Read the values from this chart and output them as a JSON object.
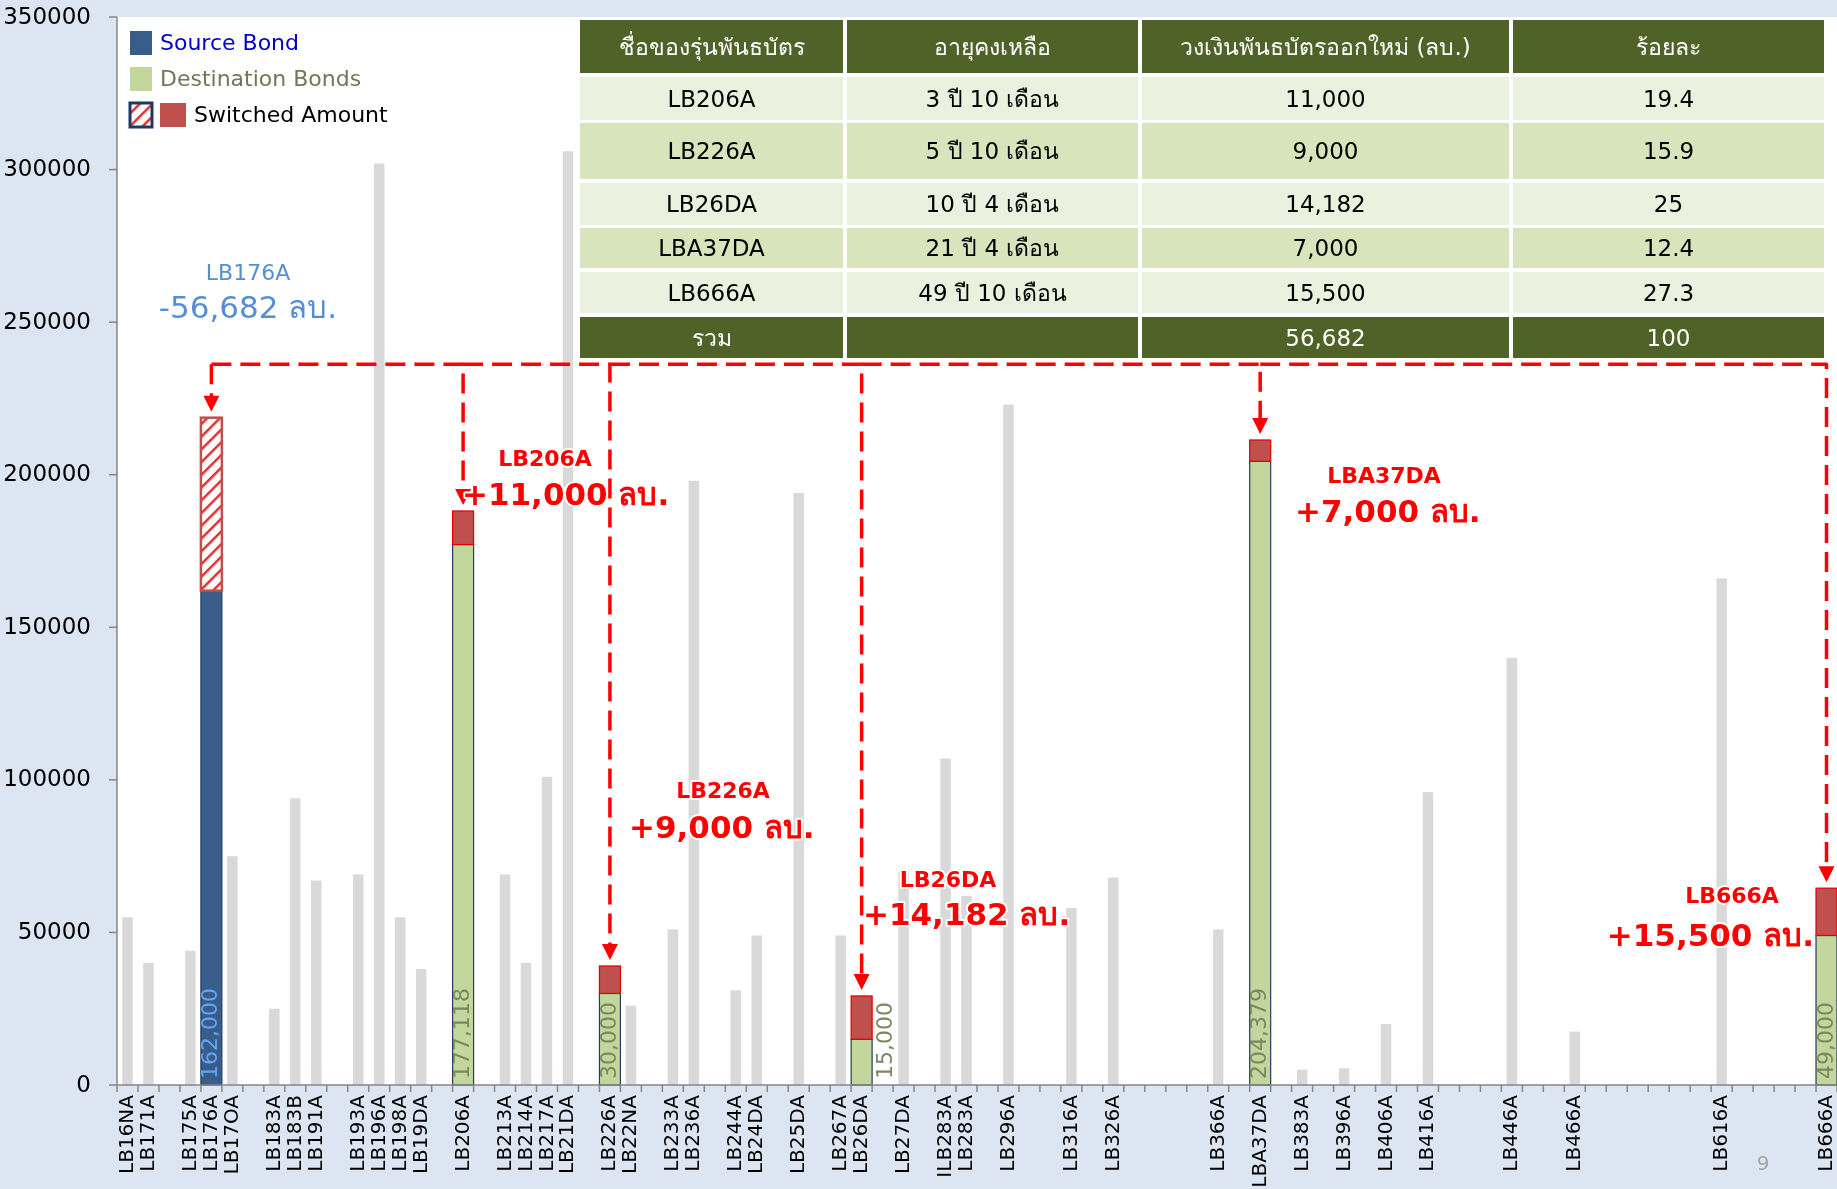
{
  "chart_data": [
    {
      "type": "bar",
      "stacked": true,
      "categories": [
        "LB16NA",
        "LB171A",
        null,
        "LB175A",
        "LB176A",
        "LB17OA",
        null,
        "LB183A",
        "LB183B",
        "LB191A",
        null,
        "LB193A",
        "LB196A",
        "LB198A",
        "LB19DA",
        null,
        "LB206A",
        null,
        "LB213A",
        "LB214A",
        "LB217A",
        "LB21DA",
        null,
        "LB226A",
        "LB22NA",
        null,
        "LB233A",
        "LB236A",
        null,
        "LB244A",
        "LB24DA",
        null,
        "LB25DA",
        null,
        "LB267A",
        "LB26DA",
        null,
        "LB27DA",
        null,
        "ILB283A",
        "LB283A",
        null,
        "LB296A",
        null,
        null,
        "LB316A",
        null,
        "LB326A",
        null,
        null,
        null,
        null,
        "LB366A",
        null,
        "LBA37DA",
        null,
        "LB383A",
        null,
        "LB396A",
        null,
        "LB406A",
        null,
        "LB416A",
        null,
        null,
        null,
        "LB446A",
        null,
        null,
        "LB466A",
        null,
        null,
        null,
        null,
        null,
        null,
        "LB616A",
        null,
        null,
        null,
        null,
        "LB666A"
      ],
      "series": [
        {
          "color": "#d9d9d9",
          "values": [
            55000,
            40000,
            null,
            44000,
            null,
            75000,
            null,
            25000,
            94000,
            67000,
            null,
            69000,
            302000,
            55000,
            38000,
            null,
            null,
            null,
            69000,
            40000,
            101000,
            306000,
            null,
            null,
            26000,
            null,
            51000,
            198000,
            null,
            31000,
            49000,
            null,
            194000,
            null,
            49000,
            null,
            null,
            70000,
            null,
            107000,
            62000,
            null,
            223000,
            null,
            null,
            58000,
            null,
            68000,
            null,
            null,
            null,
            null,
            51000,
            null,
            null,
            null,
            5000,
            null,
            5500,
            null,
            20000,
            null,
            96000,
            null,
            null,
            null,
            140000,
            null,
            null,
            17500,
            null,
            null,
            null,
            null,
            null,
            null,
            166000,
            null,
            null,
            null,
            null,
            null
          ]
        },
        {
          "name": "Source Bond",
          "color": "#385d8a",
          "values": [
            null,
            null,
            null,
            null,
            162000,
            null,
            null,
            null,
            null,
            null,
            null,
            null,
            null,
            null,
            null,
            null,
            null,
            null,
            null,
            null,
            null,
            null,
            null,
            null,
            null,
            null,
            null,
            null,
            null,
            null,
            null,
            null,
            null,
            null,
            null,
            null,
            null,
            null,
            null,
            null,
            null,
            null,
            null,
            null,
            null,
            null,
            null,
            null,
            null,
            null,
            null,
            null,
            null,
            null,
            null,
            null,
            null,
            null,
            null,
            null,
            null,
            null,
            null,
            null,
            null,
            null,
            null,
            null,
            null,
            null,
            null,
            null,
            null,
            null,
            null,
            null,
            null,
            null,
            null,
            null,
            null,
            null
          ],
          "value_labels": [
            null,
            null,
            null,
            null,
            "162,000",
            null,
            null,
            null,
            null,
            null,
            null,
            null,
            null,
            null,
            null,
            null,
            null,
            null,
            null,
            null,
            null,
            null,
            null,
            null,
            null,
            null,
            null,
            null,
            null,
            null,
            null,
            null,
            null,
            null,
            null,
            null,
            null,
            null,
            null,
            null,
            null,
            null,
            null,
            null,
            null,
            null,
            null,
            null,
            null,
            null,
            null,
            null,
            null,
            null,
            null,
            null,
            null,
            null,
            null,
            null,
            null,
            null,
            null,
            null,
            null,
            null,
            null,
            null,
            null,
            null,
            null,
            null,
            null,
            null,
            null,
            null,
            null,
            null,
            null,
            null,
            null,
            null
          ]
        },
        {
          "name": "Destination Bonds",
          "color": "#c3d69b",
          "values": [
            null,
            null,
            null,
            null,
            null,
            null,
            null,
            null,
            null,
            null,
            null,
            null,
            null,
            null,
            null,
            null,
            177118,
            null,
            null,
            null,
            null,
            null,
            null,
            30000,
            null,
            null,
            null,
            null,
            null,
            null,
            null,
            null,
            null,
            null,
            null,
            15000,
            null,
            null,
            null,
            null,
            null,
            null,
            null,
            null,
            null,
            null,
            null,
            null,
            null,
            null,
            null,
            null,
            null,
            null,
            204379,
            null,
            null,
            null,
            null,
            null,
            null,
            null,
            null,
            null,
            null,
            null,
            null,
            null,
            null,
            null,
            null,
            null,
            null,
            null,
            null,
            null,
            null,
            null,
            null,
            null,
            null,
            49000
          ],
          "value_labels": [
            null,
            null,
            null,
            null,
            null,
            null,
            null,
            null,
            null,
            null,
            null,
            null,
            null,
            null,
            null,
            null,
            "177,118",
            null,
            null,
            null,
            null,
            null,
            null,
            "30,000",
            null,
            null,
            null,
            null,
            null,
            null,
            null,
            null,
            null,
            null,
            null,
            "15,000",
            null,
            null,
            null,
            null,
            null,
            null,
            null,
            null,
            null,
            null,
            null,
            null,
            null,
            null,
            null,
            null,
            null,
            null,
            "204,379",
            null,
            null,
            null,
            null,
            null,
            null,
            null,
            null,
            null,
            null,
            null,
            null,
            null,
            null,
            null,
            null,
            null,
            null,
            null,
            null,
            null,
            null,
            null,
            null,
            null,
            null,
            "49,000"
          ]
        },
        {
          "name": "Switched Amount",
          "color": "#c0504d",
          "values": [
            null,
            null,
            null,
            null,
            56682,
            null,
            null,
            null,
            null,
            null,
            null,
            null,
            null,
            null,
            null,
            null,
            11000,
            null,
            null,
            null,
            null,
            null,
            null,
            9000,
            null,
            null,
            null,
            null,
            null,
            null,
            null,
            null,
            null,
            null,
            null,
            14182,
            null,
            null,
            null,
            null,
            null,
            null,
            null,
            null,
            null,
            null,
            null,
            null,
            null,
            null,
            null,
            null,
            null,
            null,
            7000,
            null,
            null,
            null,
            null,
            null,
            null,
            null,
            null,
            null,
            null,
            null,
            null,
            null,
            null,
            null,
            null,
            null,
            null,
            null,
            null,
            null,
            null,
            null,
            null,
            null,
            null,
            15500
          ]
        }
      ],
      "ylim": [
        0,
        350000
      ],
      "yticks": [
        0,
        50000,
        100000,
        150000,
        200000,
        250000,
        300000,
        350000
      ],
      "legend": "top left",
      "annotations": [
        "LB176A",
        "-56,682 ลบ.",
        "LB206A",
        "+11,000 ลบ.",
        "LB226A",
        "+9,000 ลบ.",
        "LB26DA",
        "+14,182 ลบ.",
        "LBA37DA",
        "+7,000 ลบ.",
        "LB666A",
        "+15,500 ลบ.",
        "9"
      ]
    },
    {
      "type": "other",
      "annotations": [
        "ชื่อของรุ่นพันธบัตร",
        "อายุคงเหลือ",
        "วงเงินพันธบัตรออกใหม่ (ลบ.)",
        "ร้อยละ",
        "LB206A",
        "3 ปี 10 เดือน",
        "11,000",
        "19.4",
        "LB226A",
        "5 ปี 10 เดือน",
        "9,000",
        "15.9",
        "LB26DA",
        "10 ปี 4 เดือน",
        "14,182",
        "25",
        "LBA37DA",
        "21 ปี 4 เดือน",
        "7,000",
        "12.4",
        "LB666A",
        "49 ปี 10 เดือน",
        "15,500",
        "27.3",
        "รวม",
        null,
        "56,682",
        "100"
      ]
    }
  ]
}
